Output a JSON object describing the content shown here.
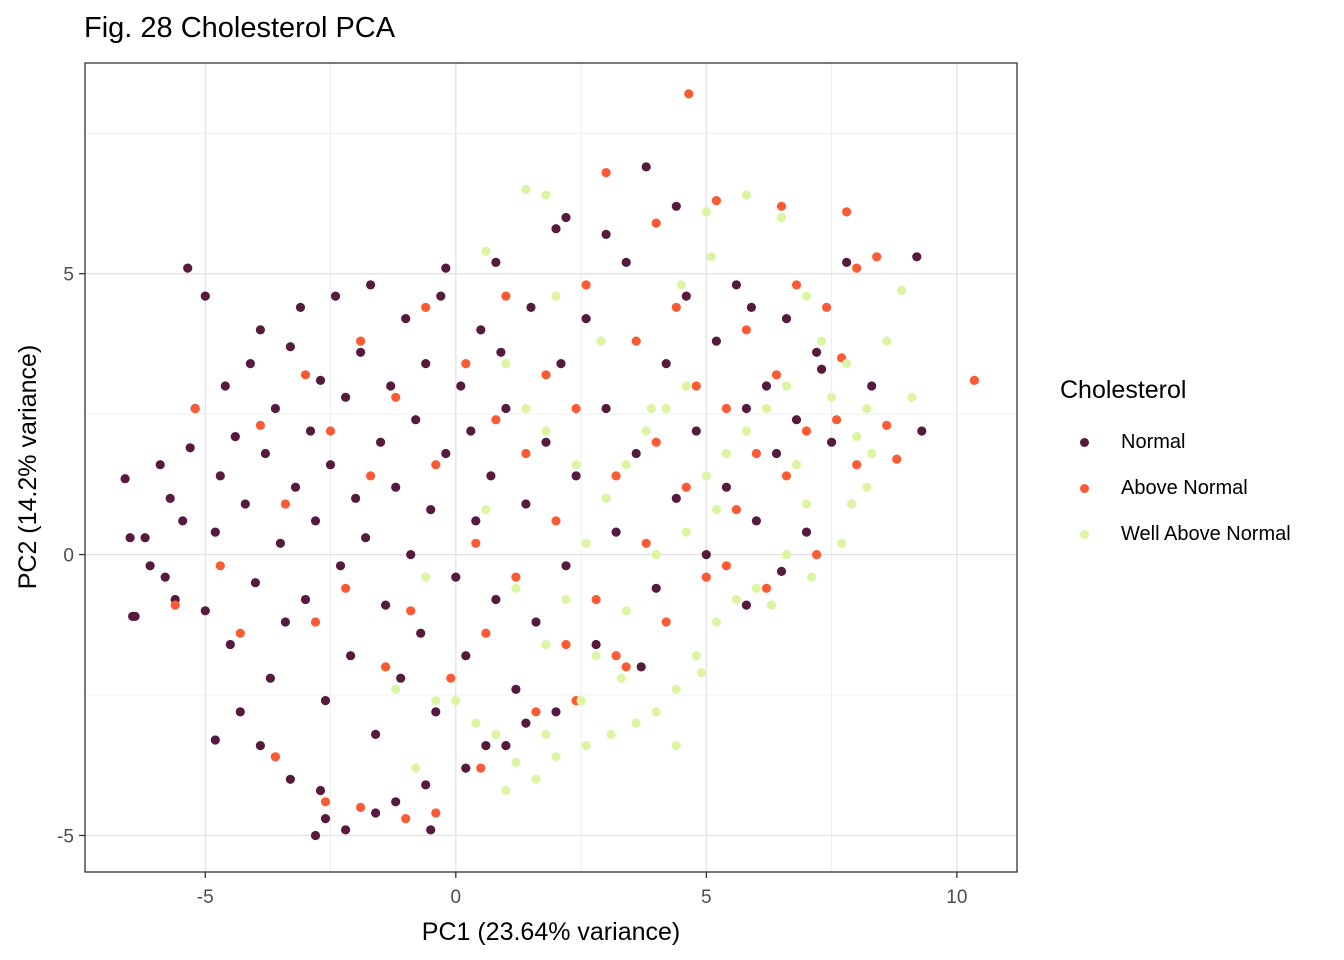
{
  "figure_title": "Fig. 28 Cholesterol PCA",
  "chart_data": {
    "type": "scatter",
    "title": "Fig. 28 Cholesterol PCA",
    "xlabel": "PC1 (23.64% variance)",
    "ylabel": "PC2 (14.2% variance)",
    "xlim": [
      -7.4,
      11.2
    ],
    "ylim": [
      -5.65,
      8.75
    ],
    "x_ticks": [
      -5,
      0,
      5,
      10
    ],
    "y_ticks": [
      -5,
      0,
      5
    ],
    "x_tick_labels": [
      "-5",
      "0",
      "5",
      "10"
    ],
    "y_tick_labels": [
      "-5",
      "0",
      "5"
    ],
    "grid": true,
    "legend_title": "Cholesterol",
    "legend_position": "right",
    "series": [
      {
        "name": "Normal",
        "color": "#571a3f",
        "points": [
          [
            -5.35,
            5.1
          ],
          [
            -6.6,
            1.35
          ],
          [
            -6.5,
            0.3
          ],
          [
            -6.45,
            -1.1
          ],
          [
            -6.2,
            0.3
          ],
          [
            -6.1,
            -0.2
          ],
          [
            -5.9,
            1.6
          ],
          [
            -5.8,
            -0.4
          ],
          [
            -5.7,
            1.0
          ],
          [
            -5.6,
            -0.8
          ],
          [
            -5.45,
            0.6
          ],
          [
            -5.3,
            1.9
          ],
          [
            -5.2,
            2.6
          ],
          [
            -5.0,
            -1.0
          ],
          [
            -4.8,
            0.4
          ],
          [
            -4.7,
            1.4
          ],
          [
            -4.6,
            3.0
          ],
          [
            -4.5,
            -1.6
          ],
          [
            -4.4,
            2.1
          ],
          [
            -4.2,
            0.9
          ],
          [
            -4.1,
            3.4
          ],
          [
            -4.0,
            -0.5
          ],
          [
            -3.9,
            4.0
          ],
          [
            -3.8,
            1.8
          ],
          [
            -3.7,
            -2.2
          ],
          [
            -3.6,
            2.6
          ],
          [
            -3.5,
            0.2
          ],
          [
            -3.4,
            -1.2
          ],
          [
            -3.3,
            3.7
          ],
          [
            -3.2,
            1.2
          ],
          [
            -3.1,
            4.4
          ],
          [
            -3.0,
            -0.8
          ],
          [
            -2.9,
            2.2
          ],
          [
            -2.8,
            0.6
          ],
          [
            -2.7,
            3.1
          ],
          [
            -2.6,
            -2.6
          ],
          [
            -2.5,
            1.6
          ],
          [
            -2.4,
            4.6
          ],
          [
            -2.3,
            -0.2
          ],
          [
            -2.2,
            2.8
          ],
          [
            -2.1,
            -1.8
          ],
          [
            -2.0,
            1.0
          ],
          [
            -1.9,
            3.6
          ],
          [
            -1.8,
            0.3
          ],
          [
            -1.7,
            4.8
          ],
          [
            -1.6,
            -3.2
          ],
          [
            -1.5,
            2.0
          ],
          [
            -1.4,
            -0.9
          ],
          [
            -1.3,
            3.0
          ],
          [
            -1.2,
            1.2
          ],
          [
            -1.1,
            -2.2
          ],
          [
            -1.0,
            4.2
          ],
          [
            -0.9,
            0.0
          ],
          [
            -0.8,
            2.4
          ],
          [
            -0.7,
            -1.4
          ],
          [
            -0.6,
            3.4
          ],
          [
            -0.5,
            0.8
          ],
          [
            -0.4,
            -2.8
          ],
          [
            -0.3,
            4.6
          ],
          [
            -0.2,
            1.8
          ],
          [
            0.0,
            -0.4
          ],
          [
            0.1,
            3.0
          ],
          [
            0.2,
            -1.8
          ],
          [
            0.3,
            2.2
          ],
          [
            0.4,
            0.6
          ],
          [
            0.5,
            4.0
          ],
          [
            0.6,
            -3.4
          ],
          [
            0.7,
            1.4
          ],
          [
            0.8,
            -0.8
          ],
          [
            0.9,
            3.6
          ],
          [
            1.0,
            2.6
          ],
          [
            1.2,
            -2.4
          ],
          [
            1.4,
            0.9
          ],
          [
            1.5,
            4.4
          ],
          [
            1.6,
            -1.2
          ],
          [
            1.8,
            2.0
          ],
          [
            2.0,
            5.8
          ],
          [
            2.1,
            3.4
          ],
          [
            2.2,
            -0.2
          ],
          [
            2.4,
            1.4
          ],
          [
            2.6,
            4.2
          ],
          [
            2.8,
            -1.6
          ],
          [
            3.0,
            2.6
          ],
          [
            3.2,
            0.4
          ],
          [
            3.4,
            5.2
          ],
          [
            3.6,
            1.8
          ],
          [
            3.8,
            6.9
          ],
          [
            4.0,
            -0.6
          ],
          [
            4.2,
            3.4
          ],
          [
            4.4,
            1.0
          ],
          [
            4.6,
            4.6
          ],
          [
            4.8,
            2.2
          ],
          [
            5.0,
            0.0
          ],
          [
            5.2,
            3.8
          ],
          [
            5.4,
            1.2
          ],
          [
            5.6,
            4.8
          ],
          [
            5.8,
            2.6
          ],
          [
            6.0,
            0.6
          ],
          [
            6.2,
            3.0
          ],
          [
            6.4,
            1.8
          ],
          [
            6.6,
            4.2
          ],
          [
            6.8,
            2.4
          ],
          [
            7.0,
            0.4
          ],
          [
            7.2,
            3.6
          ],
          [
            7.5,
            2.0
          ],
          [
            7.8,
            5.2
          ],
          [
            8.3,
            3.0
          ],
          [
            9.2,
            5.3
          ],
          [
            9.3,
            2.2
          ],
          [
            2.2,
            6.0
          ],
          [
            4.4,
            6.2
          ],
          [
            -5.0,
            4.6
          ],
          [
            -3.9,
            -3.4
          ],
          [
            -3.3,
            -4.0
          ],
          [
            -2.6,
            -4.7
          ],
          [
            -2.8,
            -5.0
          ],
          [
            -2.2,
            -4.9
          ],
          [
            -1.6,
            -4.6
          ],
          [
            -0.5,
            -4.9
          ],
          [
            -0.6,
            -4.1
          ],
          [
            0.2,
            -3.8
          ],
          [
            1.4,
            -3.0
          ],
          [
            -4.8,
            -3.3
          ],
          [
            -6.4,
            -1.1
          ],
          [
            -2.7,
            -4.2
          ],
          [
            -1.2,
            -4.4
          ],
          [
            -0.2,
            5.1
          ],
          [
            0.8,
            5.2
          ],
          [
            3.0,
            5.7
          ],
          [
            5.9,
            4.4
          ],
          [
            7.3,
            3.3
          ],
          [
            6.5,
            -0.3
          ],
          [
            5.8,
            -0.9
          ],
          [
            3.7,
            -2.0
          ],
          [
            2.0,
            -2.8
          ],
          [
            1.0,
            -3.4
          ],
          [
            -4.3,
            -2.8
          ]
        ]
      },
      {
        "name": "Above Normal",
        "color": "#fb5b34",
        "points": [
          [
            4.65,
            8.2
          ],
          [
            10.35,
            3.1
          ],
          [
            -5.6,
            -0.9
          ],
          [
            -5.2,
            2.6
          ],
          [
            -4.7,
            -0.2
          ],
          [
            -4.3,
            -1.4
          ],
          [
            -3.9,
            2.3
          ],
          [
            -3.6,
            -3.6
          ],
          [
            -3.4,
            0.9
          ],
          [
            -3.0,
            3.2
          ],
          [
            -2.8,
            -1.2
          ],
          [
            -2.5,
            2.2
          ],
          [
            -2.2,
            -0.6
          ],
          [
            -1.9,
            3.8
          ],
          [
            -1.7,
            1.4
          ],
          [
            -1.4,
            -2.0
          ],
          [
            -1.2,
            2.8
          ],
          [
            -0.9,
            -1.0
          ],
          [
            -0.6,
            4.4
          ],
          [
            -0.4,
            1.6
          ],
          [
            -0.1,
            -2.2
          ],
          [
            0.2,
            3.4
          ],
          [
            0.4,
            0.2
          ],
          [
            0.6,
            -1.4
          ],
          [
            0.8,
            2.4
          ],
          [
            1.0,
            4.6
          ],
          [
            1.2,
            -0.4
          ],
          [
            1.4,
            1.8
          ],
          [
            1.6,
            -2.8
          ],
          [
            1.8,
            3.2
          ],
          [
            2.0,
            0.6
          ],
          [
            2.2,
            -1.6
          ],
          [
            2.4,
            2.6
          ],
          [
            2.6,
            4.8
          ],
          [
            2.8,
            -0.8
          ],
          [
            3.0,
            6.8
          ],
          [
            3.2,
            1.4
          ],
          [
            3.4,
            -2.0
          ],
          [
            3.6,
            3.8
          ],
          [
            3.8,
            0.2
          ],
          [
            4.0,
            2.0
          ],
          [
            4.2,
            -1.2
          ],
          [
            4.4,
            4.4
          ],
          [
            4.6,
            1.2
          ],
          [
            4.8,
            3.0
          ],
          [
            5.0,
            -0.4
          ],
          [
            5.2,
            6.3
          ],
          [
            5.4,
            2.6
          ],
          [
            5.6,
            0.8
          ],
          [
            5.8,
            4.0
          ],
          [
            6.0,
            1.8
          ],
          [
            6.2,
            -0.6
          ],
          [
            6.4,
            3.2
          ],
          [
            6.6,
            1.4
          ],
          [
            6.8,
            4.8
          ],
          [
            7.0,
            2.2
          ],
          [
            7.2,
            0.0
          ],
          [
            7.4,
            4.4
          ],
          [
            7.6,
            2.4
          ],
          [
            7.8,
            6.1
          ],
          [
            8.0,
            1.6
          ],
          [
            8.4,
            5.3
          ],
          [
            8.8,
            1.7
          ],
          [
            8.6,
            2.3
          ],
          [
            6.5,
            6.2
          ],
          [
            5.4,
            -0.2
          ],
          [
            -0.4,
            -4.6
          ],
          [
            -1.0,
            -4.7
          ],
          [
            -1.9,
            -4.5
          ],
          [
            -2.6,
            -4.4
          ],
          [
            -3.6,
            -3.6
          ],
          [
            0.5,
            -3.8
          ],
          [
            3.2,
            -1.8
          ],
          [
            2.4,
            -2.6
          ],
          [
            4.0,
            5.9
          ],
          [
            7.7,
            3.5
          ],
          [
            8.0,
            5.1
          ]
        ]
      },
      {
        "name": "Well Above Normal",
        "color": "#dcf5a2",
        "points": [
          [
            1.4,
            6.5
          ],
          [
            1.8,
            6.4
          ],
          [
            5.8,
            6.4
          ],
          [
            5.0,
            6.1
          ],
          [
            6.5,
            6.0
          ],
          [
            7.0,
            4.6
          ],
          [
            7.3,
            3.8
          ],
          [
            7.5,
            2.8
          ],
          [
            7.8,
            3.4
          ],
          [
            8.0,
            2.1
          ],
          [
            8.3,
            1.8
          ],
          [
            8.6,
            3.8
          ],
          [
            8.9,
            4.7
          ],
          [
            9.1,
            2.8
          ],
          [
            8.2,
            1.2
          ],
          [
            7.7,
            0.2
          ],
          [
            7.0,
            0.9
          ],
          [
            6.6,
            0.0
          ],
          [
            6.0,
            -0.6
          ],
          [
            5.6,
            -0.8
          ],
          [
            5.2,
            -1.2
          ],
          [
            4.8,
            -1.8
          ],
          [
            4.4,
            -2.4
          ],
          [
            4.0,
            -2.8
          ],
          [
            3.6,
            -3.0
          ],
          [
            3.1,
            -3.2
          ],
          [
            2.6,
            -3.4
          ],
          [
            2.0,
            -3.6
          ],
          [
            1.6,
            -4.0
          ],
          [
            1.2,
            -3.7
          ],
          [
            0.8,
            -3.2
          ],
          [
            0.4,
            -3.0
          ],
          [
            0.0,
            -2.6
          ],
          [
            -0.4,
            -2.6
          ],
          [
            1.8,
            -1.6
          ],
          [
            2.2,
            -0.8
          ],
          [
            2.6,
            0.2
          ],
          [
            3.0,
            1.0
          ],
          [
            3.4,
            1.6
          ],
          [
            3.8,
            2.2
          ],
          [
            4.2,
            2.6
          ],
          [
            4.6,
            3.0
          ],
          [
            5.0,
            1.4
          ],
          [
            5.4,
            1.8
          ],
          [
            5.8,
            2.2
          ],
          [
            6.2,
            2.6
          ],
          [
            6.6,
            3.0
          ],
          [
            2.4,
            1.6
          ],
          [
            1.8,
            2.2
          ],
          [
            1.4,
            2.6
          ],
          [
            1.0,
            3.4
          ],
          [
            0.6,
            0.8
          ],
          [
            1.2,
            -0.6
          ],
          [
            2.8,
            -1.8
          ],
          [
            3.4,
            -1.0
          ],
          [
            4.0,
            0.0
          ],
          [
            4.6,
            0.4
          ],
          [
            5.2,
            0.8
          ],
          [
            -0.6,
            -0.4
          ],
          [
            -1.2,
            -2.4
          ],
          [
            -0.8,
            -3.8
          ],
          [
            1.0,
            -4.2
          ],
          [
            1.8,
            -3.2
          ],
          [
            2.5,
            -2.6
          ],
          [
            3.3,
            -2.2
          ],
          [
            4.4,
            -3.4
          ],
          [
            4.9,
            -2.1
          ],
          [
            6.3,
            -0.9
          ],
          [
            7.1,
            -0.4
          ],
          [
            3.9,
            2.6
          ],
          [
            4.5,
            4.8
          ],
          [
            2.9,
            3.8
          ],
          [
            2.0,
            4.6
          ],
          [
            0.6,
            5.4
          ],
          [
            5.1,
            5.3
          ],
          [
            8.2,
            2.6
          ],
          [
            7.9,
            0.9
          ],
          [
            6.8,
            1.6
          ]
        ]
      }
    ]
  },
  "legend": {
    "title": "Cholesterol",
    "items": [
      {
        "label": "Normal",
        "color": "#571a3f"
      },
      {
        "label": "Above Normal",
        "color": "#fb5b34"
      },
      {
        "label": "Well Above Normal",
        "color": "#dcf5a2"
      }
    ]
  }
}
